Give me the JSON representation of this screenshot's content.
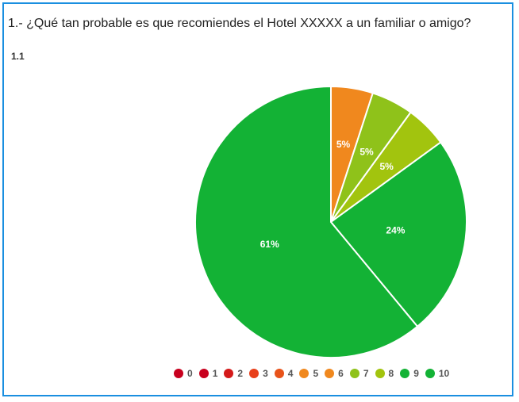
{
  "question": "1.- ¿Qué tan probable es que recomiendes el Hotel XXXXX a un familiar o amigo?",
  "subtitle": "1.1",
  "chart_data": {
    "type": "pie",
    "title": "1.- ¿Qué tan probable es que recomiendes el Hotel XXXXX a un familiar o amigo?",
    "subtitle": "1.1",
    "legend_position": "bottom-right",
    "categories": [
      "0",
      "1",
      "2",
      "3",
      "4",
      "5",
      "6",
      "7",
      "8",
      "9",
      "10"
    ],
    "values": [
      0,
      0,
      0,
      0,
      0,
      5,
      0,
      5,
      5,
      24,
      61
    ],
    "value_labels": [
      "",
      "",
      "",
      "",
      "",
      "5%",
      "",
      "5%",
      "5%",
      "24%",
      "61%"
    ],
    "colors": [
      "#c8001e",
      "#c8001e",
      "#d41a1a",
      "#e83f1a",
      "#e8531a",
      "#f0881e",
      "#f0881e",
      "#8fc21a",
      "#a2c40e",
      "#13b235",
      "#13b235"
    ]
  }
}
